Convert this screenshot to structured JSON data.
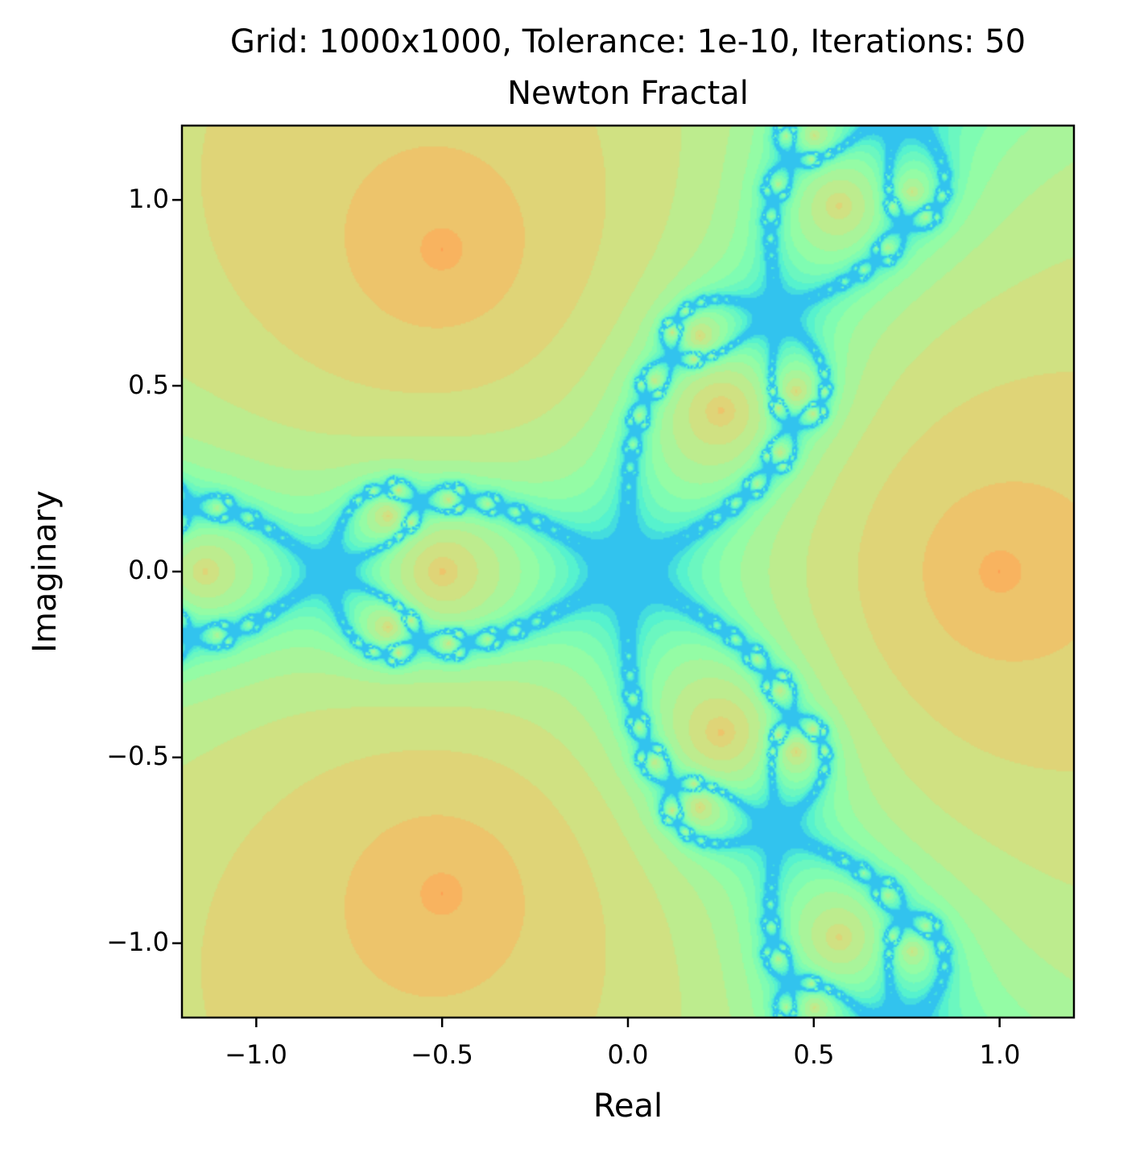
{
  "chart_data": {
    "type": "heatmap",
    "title": "Grid: 1000x1000, Tolerance: 1e-10, Iterations: 50",
    "subtitle": "Newton Fractal",
    "xlabel": "Real",
    "ylabel": "Imaginary",
    "xlim": [
      -1.2,
      1.2
    ],
    "ylim": [
      -1.2,
      1.2
    ],
    "xticks": [
      -1.0,
      -0.5,
      0.0,
      0.5,
      1.0
    ],
    "xtick_labels": [
      "−1.0",
      "−0.5",
      "0.0",
      "0.5",
      "1.0"
    ],
    "yticks": [
      1.0,
      0.5,
      0.0,
      -0.5,
      -1.0
    ],
    "ytick_labels": [
      "1.0",
      "0.5",
      "0.0",
      "−0.5",
      "−1.0"
    ],
    "grid": false,
    "colormap": "rainbow",
    "roots": [
      [
        1.0,
        0.0
      ],
      [
        -0.5,
        0.866
      ],
      [
        -0.5,
        -0.866
      ]
    ],
    "colors": {
      "root_core": "#ff6030",
      "root_basin_inner": "#ff9a50",
      "basin": "#e8c870",
      "mid": "#c8e888",
      "boundary_light": "#7affb0",
      "boundary": "#20a8ff"
    }
  }
}
